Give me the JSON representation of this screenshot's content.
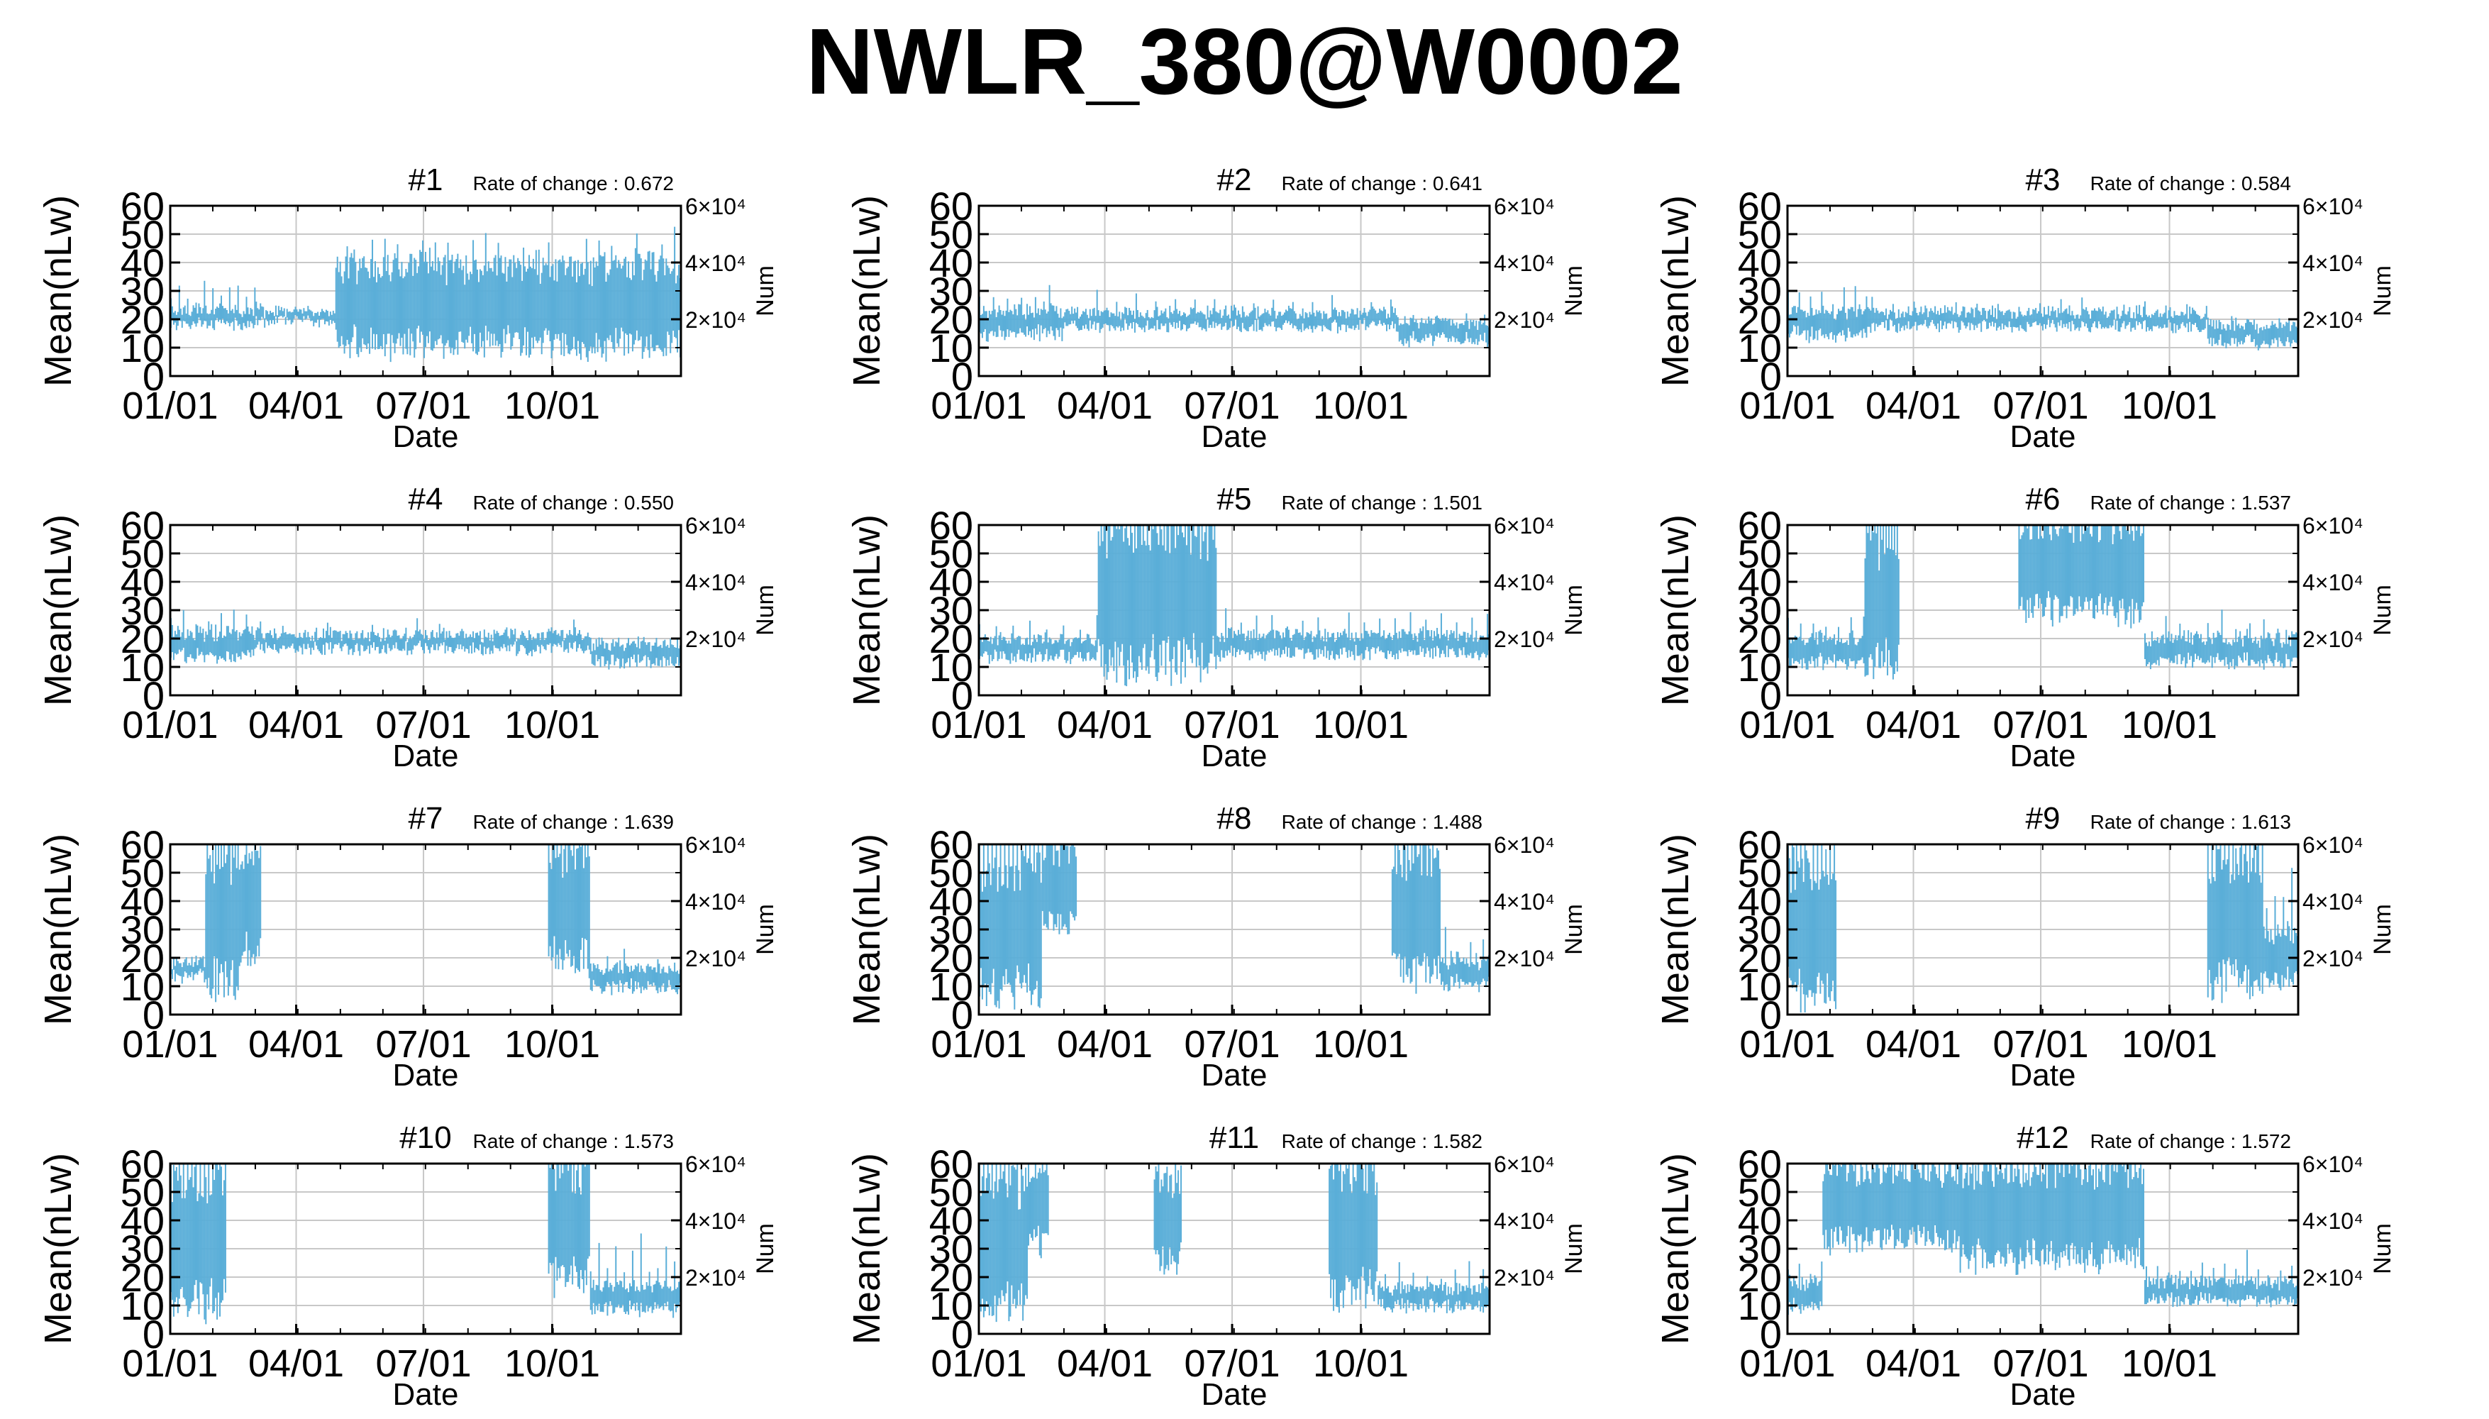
{
  "page": {
    "title": "NWLR_380@W0002"
  },
  "style": {
    "data_color": "#5aaed8",
    "grid_color": "#c8c8c8",
    "axis_color": "#000000"
  },
  "axes_common": {
    "xlabel": "Date",
    "ylabel": "Mean(nLw)",
    "y2label": "Num",
    "ylim": [
      0,
      60
    ],
    "yticks": [
      "0",
      "10",
      "20",
      "30",
      "40",
      "50",
      "60"
    ],
    "xticks": [
      "01/01",
      "04/01",
      "07/01",
      "10/01"
    ],
    "xtick_days": [
      0,
      90,
      181,
      273
    ],
    "xlim_days": [
      0,
      365
    ],
    "y2ticks": [
      "2×10⁴",
      "4×10⁴",
      "6×10⁴"
    ],
    "y2tick_values": [
      20,
      40,
      60
    ],
    "rate_prefix": "Rate of change : "
  },
  "chart_data": [
    {
      "type": "error-bar",
      "title": "#1",
      "rate_of_change": "0.672",
      "xlabel": "Date",
      "ylabel": "Mean(nLw)",
      "y2label": "Num",
      "ylim": [
        0,
        60
      ],
      "segments": [
        {
          "start": 0,
          "end": 65,
          "center": 21,
          "half": 3,
          "spike_every": 6,
          "spike_len": 8
        },
        {
          "start": 65,
          "end": 118,
          "center": 21,
          "half": 2,
          "spike_every": 0,
          "spike_len": 0
        },
        {
          "start": 118,
          "end": 365,
          "center": 25,
          "half": 17,
          "spike_every": 9,
          "spike_len": 8
        }
      ]
    },
    {
      "type": "error-bar",
      "title": "#2",
      "rate_of_change": "0.641",
      "xlabel": "Date",
      "ylabel": "Mean(nLw)",
      "y2label": "Num",
      "ylim": [
        0,
        60
      ],
      "segments": [
        {
          "start": 0,
          "end": 60,
          "center": 19,
          "half": 5,
          "spike_every": 10,
          "spike_len": 7
        },
        {
          "start": 60,
          "end": 300,
          "center": 20,
          "half": 3,
          "spike_every": 14,
          "spike_len": 5
        },
        {
          "start": 300,
          "end": 365,
          "center": 16,
          "half": 4,
          "spike_every": 0,
          "spike_len": 0
        }
      ]
    },
    {
      "type": "error-bar",
      "title": "#3",
      "rate_of_change": "0.584",
      "xlabel": "Date",
      "ylabel": "Mean(nLw)",
      "y2label": "Num",
      "ylim": [
        0,
        60
      ],
      "segments": [
        {
          "start": 0,
          "end": 60,
          "center": 19,
          "half": 5,
          "spike_every": 8,
          "spike_len": 8
        },
        {
          "start": 60,
          "end": 300,
          "center": 20,
          "half": 3,
          "spike_every": 15,
          "spike_len": 4
        },
        {
          "start": 300,
          "end": 365,
          "center": 15,
          "half": 4,
          "spike_every": 0,
          "spike_len": 0
        }
      ]
    },
    {
      "type": "error-bar",
      "title": "#4",
      "rate_of_change": "0.550",
      "xlabel": "Date",
      "ylabel": "Mean(nLw)",
      "y2label": "Num",
      "ylim": [
        0,
        60
      ],
      "segments": [
        {
          "start": 0,
          "end": 60,
          "center": 18,
          "half": 5,
          "spike_every": 9,
          "spike_len": 7
        },
        {
          "start": 60,
          "end": 300,
          "center": 19,
          "half": 3,
          "spike_every": 16,
          "spike_len": 4
        },
        {
          "start": 300,
          "end": 365,
          "center": 15,
          "half": 4,
          "spike_every": 0,
          "spike_len": 0
        }
      ]
    },
    {
      "type": "error-bar",
      "title": "#5",
      "rate_of_change": "1.501",
      "xlabel": "Date",
      "ylabel": "Mean(nLw)",
      "y2label": "Num",
      "ylim": [
        0,
        60
      ],
      "segments": [
        {
          "start": 0,
          "end": 85,
          "center": 17,
          "half": 4,
          "spike_every": 12,
          "spike_len": 5
        },
        {
          "start": 85,
          "end": 170,
          "center": 35,
          "half": 28,
          "spike_every": 3,
          "spike_len": 25
        },
        {
          "start": 170,
          "end": 365,
          "center": 18,
          "half": 4,
          "spike_every": 11,
          "spike_len": 8
        }
      ]
    },
    {
      "type": "error-bar",
      "title": "#6",
      "rate_of_change": "1.537",
      "xlabel": "Date",
      "ylabel": "Mean(nLw)",
      "y2label": "Num",
      "ylim": [
        0,
        60
      ],
      "segments": [
        {
          "start": 0,
          "end": 55,
          "center": 16,
          "half": 5,
          "spike_every": 9,
          "spike_len": 6
        },
        {
          "start": 55,
          "end": 80,
          "center": 32,
          "half": 25,
          "spike_every": 2,
          "spike_len": 20
        },
        {
          "start": 165,
          "end": 255,
          "center": 45,
          "half": 18,
          "spike_every": 5,
          "spike_len": 15
        },
        {
          "start": 255,
          "end": 365,
          "center": 16,
          "half": 5,
          "spike_every": 10,
          "spike_len": 6
        }
      ]
    },
    {
      "type": "error-bar",
      "title": "#7",
      "rate_of_change": "1.639",
      "xlabel": "Date",
      "ylabel": "Mean(nLw)",
      "y2label": "Num",
      "ylim": [
        0,
        60
      ],
      "segments": [
        {
          "start": 0,
          "end": 25,
          "center": 16,
          "half": 3,
          "spike_every": 0,
          "spike_len": 0
        },
        {
          "start": 25,
          "end": 50,
          "center": 32,
          "half": 25,
          "spike_every": 2,
          "spike_len": 20
        },
        {
          "start": 50,
          "end": 65,
          "center": 40,
          "half": 20,
          "spike_every": 6,
          "spike_len": 10
        },
        {
          "start": 270,
          "end": 300,
          "center": 38,
          "half": 22,
          "spike_every": 3,
          "spike_len": 15
        },
        {
          "start": 300,
          "end": 365,
          "center": 13,
          "half": 4,
          "spike_every": 12,
          "spike_len": 5
        }
      ]
    },
    {
      "type": "error-bar",
      "title": "#8",
      "rate_of_change": "1.488",
      "xlabel": "Date",
      "ylabel": "Mean(nLw)",
      "y2label": "Num",
      "ylim": [
        0,
        60
      ],
      "segments": [
        {
          "start": 0,
          "end": 45,
          "center": 30,
          "half": 25,
          "spike_every": 3,
          "spike_len": 20
        },
        {
          "start": 45,
          "end": 70,
          "center": 45,
          "half": 15,
          "spike_every": 6,
          "spike_len": 10
        },
        {
          "start": 295,
          "end": 330,
          "center": 35,
          "half": 25,
          "spike_every": 3,
          "spike_len": 18
        },
        {
          "start": 330,
          "end": 365,
          "center": 15,
          "half": 5,
          "spike_every": 9,
          "spike_len": 10
        }
      ]
    },
    {
      "type": "error-bar",
      "title": "#9",
      "rate_of_change": "1.613",
      "xlabel": "Date",
      "ylabel": "Mean(nLw)",
      "y2label": "Num",
      "ylim": [
        0,
        60
      ],
      "segments": [
        {
          "start": 0,
          "end": 35,
          "center": 30,
          "half": 26,
          "spike_every": 3,
          "spike_len": 20
        },
        {
          "start": 300,
          "end": 340,
          "center": 32,
          "half": 25,
          "spike_every": 3,
          "spike_len": 18
        },
        {
          "start": 340,
          "end": 365,
          "center": 20,
          "half": 10,
          "spike_every": 6,
          "spike_len": 20
        }
      ]
    },
    {
      "type": "error-bar",
      "title": "#10",
      "rate_of_change": "1.573",
      "xlabel": "Date",
      "ylabel": "Mean(nLw)",
      "y2label": "Num",
      "ylim": [
        0,
        60
      ],
      "segments": [
        {
          "start": 0,
          "end": 40,
          "center": 32,
          "half": 26,
          "spike_every": 3,
          "spike_len": 20
        },
        {
          "start": 270,
          "end": 300,
          "center": 38,
          "half": 22,
          "spike_every": 3,
          "spike_len": 15
        },
        {
          "start": 300,
          "end": 365,
          "center": 13,
          "half": 5,
          "spike_every": 6,
          "spike_len": 15
        }
      ]
    },
    {
      "type": "error-bar",
      "title": "#11",
      "rate_of_change": "1.582",
      "xlabel": "Date",
      "ylabel": "Mean(nLw)",
      "y2label": "Num",
      "ylim": [
        0,
        60
      ],
      "segments": [
        {
          "start": 0,
          "end": 35,
          "center": 30,
          "half": 25,
          "spike_every": 3,
          "spike_len": 20
        },
        {
          "start": 35,
          "end": 50,
          "center": 45,
          "half": 15,
          "spike_every": 8,
          "spike_len": 10
        },
        {
          "start": 125,
          "end": 145,
          "center": 40,
          "half": 18,
          "spike_every": 10,
          "spike_len": 10
        },
        {
          "start": 250,
          "end": 285,
          "center": 35,
          "half": 25,
          "spike_every": 3,
          "spike_len": 20
        },
        {
          "start": 285,
          "end": 365,
          "center": 13,
          "half": 4,
          "spike_every": 10,
          "spike_len": 8
        }
      ]
    },
    {
      "type": "error-bar",
      "title": "#12",
      "rate_of_change": "1.572",
      "xlabel": "Date",
      "ylabel": "Mean(nLw)",
      "y2label": "Num",
      "ylim": [
        0,
        60
      ],
      "segments": [
        {
          "start": 0,
          "end": 25,
          "center": 14,
          "half": 5,
          "spike_every": 8,
          "spike_len": 6
        },
        {
          "start": 25,
          "end": 120,
          "center": 45,
          "half": 15,
          "spike_every": 4,
          "spike_len": 18
        },
        {
          "start": 120,
          "end": 255,
          "center": 42,
          "half": 18,
          "spike_every": 4,
          "spike_len": 18
        },
        {
          "start": 255,
          "end": 365,
          "center": 15,
          "half": 4,
          "spike_every": 8,
          "spike_len": 8
        }
      ]
    }
  ]
}
